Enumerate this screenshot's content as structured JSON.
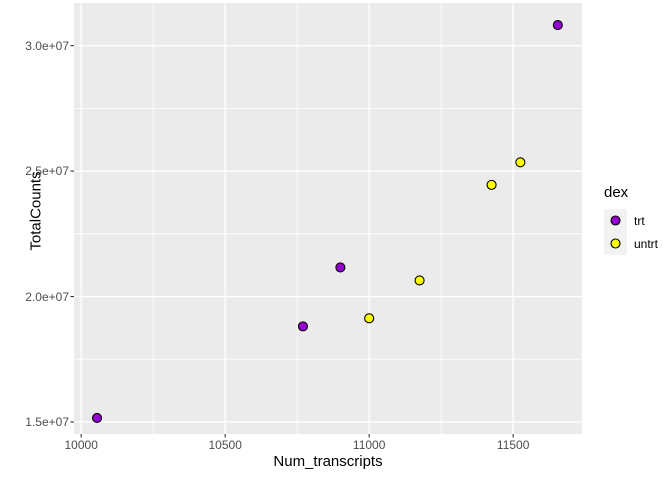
{
  "chart_data": {
    "type": "scatter",
    "title": "",
    "xlabel": "Num_transcripts",
    "ylabel": "TotalCounts",
    "xlim": [
      9975,
      11739
    ],
    "ylim": [
      14520000,
      31700000
    ],
    "grid": true,
    "x_ticks": {
      "values": [
        10000,
        10500,
        11000,
        11500
      ],
      "labels": [
        "10000",
        "10500",
        "11000",
        "11500"
      ]
    },
    "y_ticks": {
      "values": [
        15000000,
        20000000,
        25000000,
        30000000
      ],
      "labels": [
        "1.5e+07",
        "2.0e+07",
        "2.5e+07",
        "3.0e+07"
      ]
    },
    "x_minor": [
      10250,
      10750,
      11250
    ],
    "y_minor": [
      17500000,
      22500000,
      27500000
    ],
    "legend": {
      "title": "dex",
      "position": "right",
      "entries": [
        {
          "label": "trt",
          "fill": "#9400D3"
        },
        {
          "label": "untrt",
          "fill": "#FFFF00"
        }
      ]
    },
    "series": [
      {
        "name": "trt",
        "fill": "#9400D3",
        "points": [
          {
            "x": 10055,
            "y": 15160000
          },
          {
            "x": 10770,
            "y": 18810000
          },
          {
            "x": 10900,
            "y": 21160000
          },
          {
            "x": 11655,
            "y": 30820000
          }
        ]
      },
      {
        "name": "untrt",
        "fill": "#FFFF00",
        "points": [
          {
            "x": 11000,
            "y": 19130000
          },
          {
            "x": 11175,
            "y": 20640000
          },
          {
            "x": 11425,
            "y": 24450000
          },
          {
            "x": 11525,
            "y": 25350000
          }
        ]
      }
    ],
    "colors": {
      "panel_bg": "#EBEBEB",
      "grid_major": "#FFFFFF",
      "grid_minor": "#FFFFFF",
      "tick_mark": "#333333",
      "tick_label": "#4D4D4D",
      "axis_title": "#000000",
      "point_stroke": "#000000",
      "legend_key_bg": "#F2F2F2"
    }
  }
}
